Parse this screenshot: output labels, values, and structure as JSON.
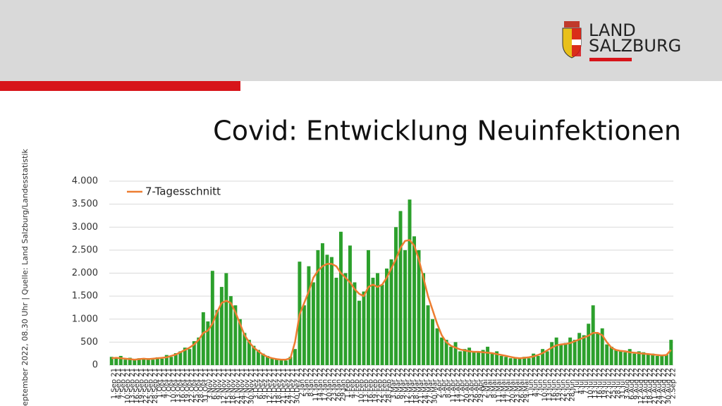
{
  "header": {
    "logo_line1": "LAND",
    "logo_line2": "SALZBURG"
  },
  "side_note": "eptember 2022, 08.30 Uhr | Quelle: Land Salzburg/Landesstatistik",
  "chart_data": {
    "type": "bar",
    "title": "Covid: Entwicklung Neuinfektionen",
    "categories": [
      "1.Sep 21",
      "4.Sep 21",
      "7.Sep 21",
      "10.Sep 21",
      "13.Sep 21",
      "16.Sep 21",
      "19.Sep 21",
      "22.Sep 21",
      "25.Sep 21",
      "28.Sep 21",
      "1.Okt 21",
      "4.Okt 21",
      "7.Okt 21",
      "10.Okt 21",
      "13.Okt 21",
      "16.Okt 21",
      "19.Okt 21",
      "22.Okt 21",
      "25.Okt 21",
      "28.Okt 21",
      "31.Okt 21",
      "3.Nov 21",
      "6.Nov 21",
      "9.Nov 21",
      "12.Nov 21",
      "15.Nov 21",
      "18.Nov 21",
      "21.Nov 21",
      "24.Nov 21",
      "27.Nov 21",
      "30.Nov 21",
      "3.Dez 21",
      "6.Dez 21",
      "9.Dez 21",
      "12.Dez 21",
      "15.Dez 21",
      "18.Dez 21",
      "21.Dez 21",
      "24.Dez 21",
      "27.Dez 21",
      "30.Dez 21",
      "2.Jän 22",
      "5.Jän 22",
      "8.Jän 22",
      "11.Jän 22",
      "14.Jän 22",
      "17.Jän 22",
      "20.Jän 22",
      "23.Jän 22",
      "26.Jän 22",
      "29.Jän 22",
      "1.Feb 22",
      "4.Feb 22",
      "7.Feb 22",
      "10.Feb 22",
      "13.Feb 22",
      "16.Feb 22",
      "19.Feb 22",
      "22.Feb 22",
      "25.Feb 22",
      "28.Feb 22",
      "3.Mär 22",
      "6.Mär 22",
      "9.Mär 22",
      "12.Mär 22",
      "15.Mär 22",
      "18.Mär 22",
      "21.Mär 22",
      "24.Mär 22",
      "27.Mär 22",
      "30.Mär 22",
      "2.Apr 22",
      "5.Apr 22",
      "8.Apr 22",
      "11.Apr 22",
      "14.Apr 22",
      "17.Apr 22",
      "20.Apr 22",
      "23.Apr 22",
      "26.Apr 22",
      "29.Apr 22",
      "2.Mai 22",
      "5.Mai 22",
      "8.Mai 22",
      "11.Mai 22",
      "14.Mai 22",
      "17.Mai 22",
      "20.Mai 22",
      "23.Mai 22",
      "26.Mai 22",
      "29.Mai 22",
      "1.Jun 22",
      "4.Jun 22",
      "7.Jun 22",
      "10.Jun 22",
      "13.Jun 22",
      "16.Jun 22",
      "19.Jun 22",
      "22.Jun 22",
      "25.Jun 22",
      "28.Jun 22",
      "1.Jul 22",
      "4.Jul 22",
      "7.Jul 22",
      "10.Jul 22",
      "13.Jul 22",
      "16.Jul 22",
      "19.Jul 22",
      "22.Jul 22",
      "25.Jul 22",
      "28.Jul 22",
      "31.Jul 22",
      "3.Aug 22",
      "6.Aug 22",
      "9.Aug 22",
      "12.Aug 22",
      "15.Aug 22",
      "18.Aug 22",
      "21.Aug 22",
      "24.Aug 22",
      "27.Aug 22",
      "30.Aug 22",
      "2.Sep 22"
    ],
    "bars": {
      "color": "#2ca02c",
      "values": [
        180,
        140,
        200,
        120,
        160,
        110,
        150,
        130,
        150,
        120,
        170,
        140,
        220,
        180,
        260,
        300,
        380,
        350,
        520,
        600,
        1150,
        950,
        2050,
        1200,
        1700,
        2000,
        1500,
        1300,
        1000,
        700,
        550,
        420,
        330,
        250,
        200,
        160,
        140,
        110,
        100,
        180,
        350,
        2250,
        1300,
        2150,
        1800,
        2500,
        2650,
        2400,
        2350,
        1900,
        2900,
        2000,
        2600,
        1800,
        1400,
        1600,
        2500,
        1900,
        2000,
        1750,
        2100,
        2300,
        3000,
        3350,
        2500,
        3600,
        2800,
        2500,
        2000,
        1300,
        1000,
        800,
        600,
        550,
        400,
        500,
        300,
        350,
        380,
        300,
        280,
        330,
        400,
        250,
        300,
        200,
        180,
        150,
        170,
        140,
        180,
        150,
        250,
        200,
        350,
        300,
        500,
        600,
        450,
        480,
        600,
        550,
        700,
        650,
        900,
        1300,
        700,
        800,
        450,
        400,
        330,
        300,
        280,
        350,
        250,
        300,
        280,
        230,
        250,
        200,
        220,
        230,
        550
      ]
    },
    "series": [
      {
        "name": "7-Tagesschnitt",
        "color": "#ed7d31",
        "values": [
          150,
          160,
          150,
          140,
          130,
          120,
          130,
          140,
          130,
          140,
          150,
          160,
          170,
          200,
          230,
          280,
          330,
          380,
          450,
          550,
          700,
          750,
          900,
          1150,
          1350,
          1400,
          1350,
          1150,
          900,
          650,
          500,
          380,
          300,
          230,
          180,
          150,
          130,
          120,
          120,
          150,
          500,
          1100,
          1350,
          1600,
          1900,
          2050,
          2150,
          2200,
          2200,
          2150,
          2000,
          1900,
          1800,
          1650,
          1550,
          1500,
          1700,
          1750,
          1700,
          1750,
          1900,
          2100,
          2300,
          2550,
          2700,
          2720,
          2600,
          2300,
          1900,
          1500,
          1200,
          900,
          650,
          500,
          420,
          380,
          340,
          320,
          300,
          290,
          290,
          280,
          270,
          260,
          240,
          220,
          200,
          180,
          160,
          150,
          160,
          170,
          190,
          220,
          260,
          320,
          380,
          430,
          450,
          460,
          480,
          520,
          560,
          600,
          640,
          700,
          700,
          650,
          500,
          380,
          330,
          310,
          300,
          280,
          270,
          260,
          250,
          240,
          230,
          220,
          210,
          220,
          330
        ]
      }
    ],
    "ylim": [
      0,
      4000
    ],
    "yticks": [
      {
        "value": 0,
        "label": "0"
      },
      {
        "value": 500,
        "label": "500"
      },
      {
        "value": 1000,
        "label": "1.000"
      },
      {
        "value": 1500,
        "label": "1.500"
      },
      {
        "value": 2000,
        "label": "2.000"
      },
      {
        "value": 2500,
        "label": "2.500"
      },
      {
        "value": 3000,
        "label": "3.000"
      },
      {
        "value": 3500,
        "label": "3.500"
      },
      {
        "value": 4000,
        "label": "4.000"
      }
    ],
    "grid": true,
    "legend": "upper left"
  }
}
